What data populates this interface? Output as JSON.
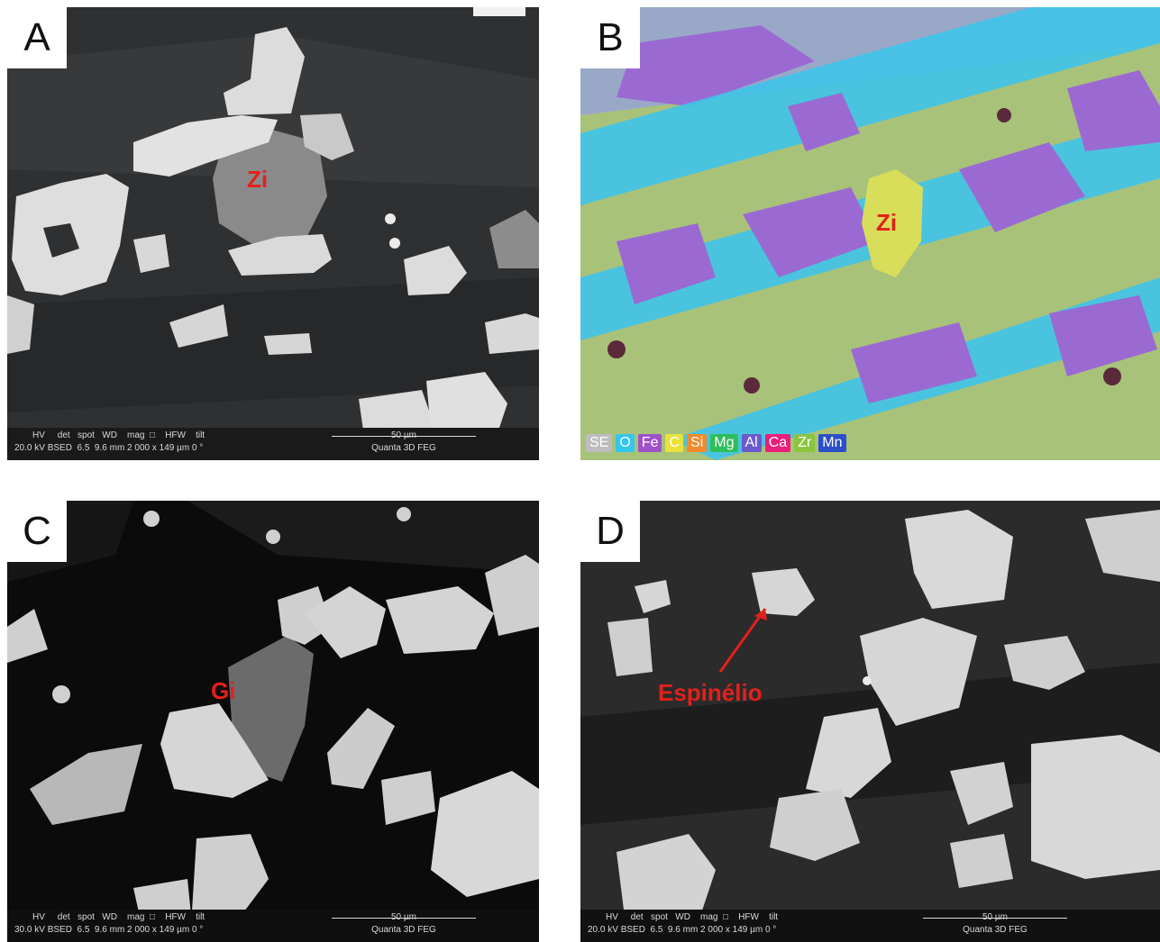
{
  "panels": {
    "a": {
      "letter": "A",
      "label": "Zi",
      "databar": {
        "row1": "HV     det   spot   WD    mag  □    HFW    tilt",
        "row2": "20.0 kV BSED  6.5  9.6 mm 2 000 x 149 µm 0 °",
        "scale": "50 µm",
        "model": "Quanta 3D FEG"
      }
    },
    "b": {
      "letter": "B",
      "label": "Zi",
      "legend": [
        {
          "text": "SE",
          "color": "#bdbdbd"
        },
        {
          "text": "O",
          "color": "#33c6f0"
        },
        {
          "text": "Fe",
          "color": "#a050c8"
        },
        {
          "text": "C",
          "color": "#e8e23a"
        },
        {
          "text": "Si",
          "color": "#f08a2a"
        },
        {
          "text": "Mg",
          "color": "#2fbf5a"
        },
        {
          "text": "Al",
          "color": "#6a5acd"
        },
        {
          "text": "Ca",
          "color": "#e8207a"
        },
        {
          "text": "Zr",
          "color": "#8bc53f"
        },
        {
          "text": "Mn",
          "color": "#2b4fc9"
        }
      ]
    },
    "c": {
      "letter": "C",
      "label": "Gi",
      "databar": {
        "row1": "HV     det   spot   WD    mag  □    HFW    tilt",
        "row2": "30.0 kV BSED  6.5  9.6 mm 2 000 x 149 µm 0 °",
        "scale": "50 µm",
        "model": "Quanta 3D FEG"
      }
    },
    "d": {
      "letter": "D",
      "label": "Espinélio",
      "databar": {
        "row1": "HV     det   spot   WD    mag  □    HFW    tilt",
        "row2": "20.0 kV BSED  6.5  9.6 mm 2 000 x 149 µm 0 °",
        "scale": "50 µm",
        "model": "Quanta 3D FEG"
      }
    }
  }
}
